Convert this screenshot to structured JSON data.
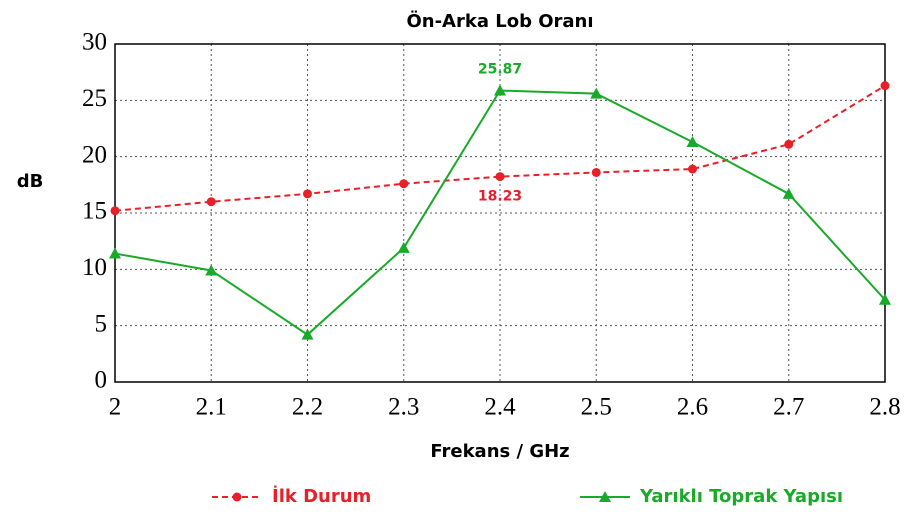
{
  "chart_data": {
    "type": "line",
    "title": "Ön-Arka Lob Oranı",
    "xlabel": "Frekans / GHz",
    "ylabel": "dB",
    "x": [
      2,
      2.1,
      2.2,
      2.3,
      2.4,
      2.5,
      2.6,
      2.7,
      2.8
    ],
    "series": [
      {
        "name": "İlk Durum",
        "color": "#e8202a",
        "dashed": true,
        "marker": "circle",
        "values": [
          15.2,
          16.0,
          16.7,
          17.6,
          18.23,
          18.6,
          18.9,
          21.1,
          26.3
        ],
        "value_labels": [
          null,
          null,
          null,
          null,
          "18.23",
          null,
          null,
          null,
          null
        ]
      },
      {
        "name": "Yarıklı Toprak Yapısı",
        "color": "#1aaa2a",
        "dashed": false,
        "marker": "triangle",
        "values": [
          11.4,
          9.9,
          4.2,
          11.9,
          25.87,
          25.6,
          21.3,
          16.7,
          7.3
        ],
        "value_labels": [
          null,
          null,
          null,
          null,
          "25.87",
          null,
          null,
          null,
          null
        ]
      }
    ],
    "xlim": [
      2,
      2.8
    ],
    "xticks": [
      2,
      2.1,
      2.2,
      2.3,
      2.4,
      2.5,
      2.6,
      2.7,
      2.8
    ],
    "ylim": [
      0,
      30
    ],
    "yticks": [
      0,
      5,
      10,
      15,
      20,
      25,
      30
    ],
    "grid": true,
    "legend": "bottom"
  }
}
